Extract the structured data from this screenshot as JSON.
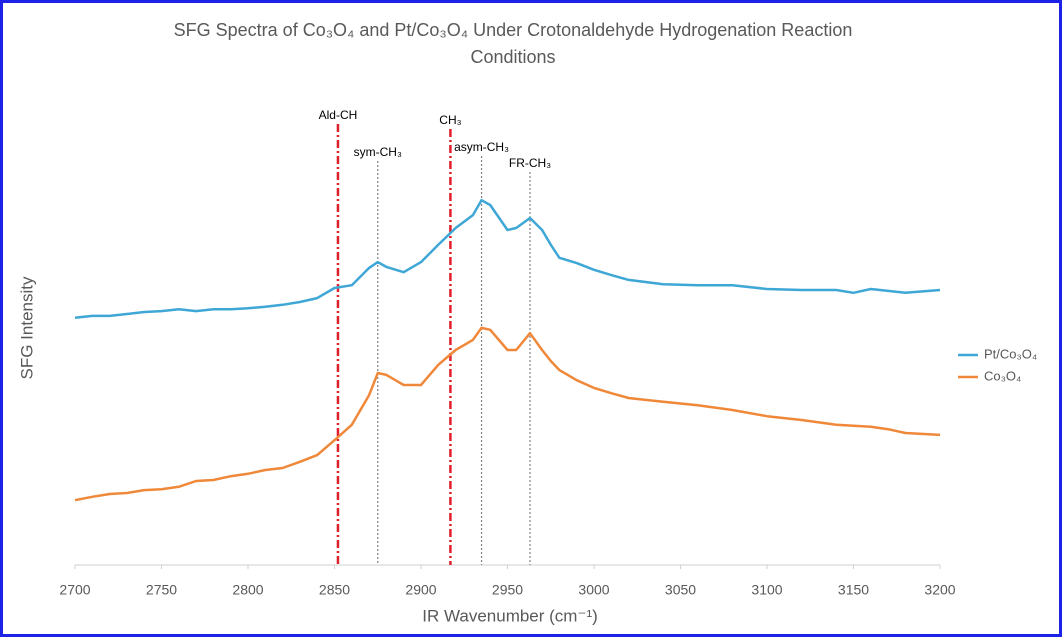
{
  "chart_data": {
    "type": "line",
    "title": "SFG Spectra of Co₃O₄ and Pt/Co₃O₄ Under Crotonaldehyde Hydrogenation Reaction",
    "subtitle": "Conditions",
    "x_label": "IR Wavenumber (cm⁻¹)",
    "y_label": "SFG Intensity",
    "x": [
      2700,
      2710,
      2720,
      2730,
      2740,
      2750,
      2760,
      2770,
      2780,
      2790,
      2800,
      2810,
      2820,
      2830,
      2840,
      2850,
      2860,
      2870,
      2875,
      2880,
      2890,
      2900,
      2910,
      2920,
      2930,
      2935,
      2940,
      2950,
      2955,
      2963,
      2970,
      2975,
      2980,
      2990,
      3000,
      3010,
      3020,
      3040,
      3060,
      3080,
      3100,
      3120,
      3140,
      3150,
      3160,
      3170,
      3180,
      3200
    ],
    "series": [
      {
        "name": "Pt/Co₃O₄",
        "color": "#3fa7d6",
        "values": [
          51.5,
          51.9,
          51.9,
          52.3,
          52.7,
          52.9,
          53.3,
          52.9,
          53.3,
          53.3,
          53.5,
          53.8,
          54.2,
          54.8,
          55.6,
          57.7,
          58.3,
          61.9,
          63.1,
          62.1,
          61.0,
          63.1,
          66.7,
          70.2,
          72.9,
          76.0,
          75.0,
          69.8,
          70.2,
          72.3,
          69.8,
          66.7,
          64.0,
          62.9,
          61.5,
          60.4,
          59.4,
          58.5,
          58.3,
          58.3,
          57.5,
          57.3,
          57.3,
          56.7,
          57.5,
          57.1,
          56.7,
          57.3
        ]
      },
      {
        "name": "Co₃O₄",
        "color": "#f0883a",
        "values": [
          13.5,
          14.2,
          14.8,
          15.0,
          15.6,
          15.8,
          16.3,
          17.5,
          17.7,
          18.5,
          19.0,
          19.8,
          20.2,
          21.5,
          22.9,
          26.0,
          29.2,
          35.4,
          40.0,
          39.6,
          37.5,
          37.5,
          41.7,
          44.8,
          46.9,
          49.4,
          49.0,
          44.8,
          44.8,
          48.3,
          44.8,
          42.5,
          40.6,
          38.5,
          36.9,
          35.8,
          34.8,
          34.0,
          33.3,
          32.3,
          31.0,
          30.2,
          29.2,
          29.0,
          28.8,
          28.3,
          27.5,
          27.1
        ]
      }
    ],
    "annotations": [
      {
        "x": 2852,
        "label": "Ald-CH",
        "color": "#e0202a",
        "style": "dash-dot"
      },
      {
        "x": 2875,
        "label": "sym-CH₃",
        "color": "#808080",
        "style": "dotted"
      },
      {
        "x": 2917,
        "label": "CH₃",
        "color": "#e0202a",
        "style": "dash-dot"
      },
      {
        "x": 2935,
        "label": "asym-CH₃",
        "color": "#808080",
        "style": "dotted"
      },
      {
        "x": 2963,
        "label": "FR-CH₃",
        "color": "#808080",
        "style": "dotted"
      }
    ],
    "xlim": [
      2700,
      3200
    ],
    "xticks": [
      2700,
      2750,
      2800,
      2850,
      2900,
      2950,
      3000,
      3050,
      3100,
      3150,
      3200
    ],
    "ylim": [
      0,
      100
    ],
    "grid": false,
    "legend": "right"
  }
}
